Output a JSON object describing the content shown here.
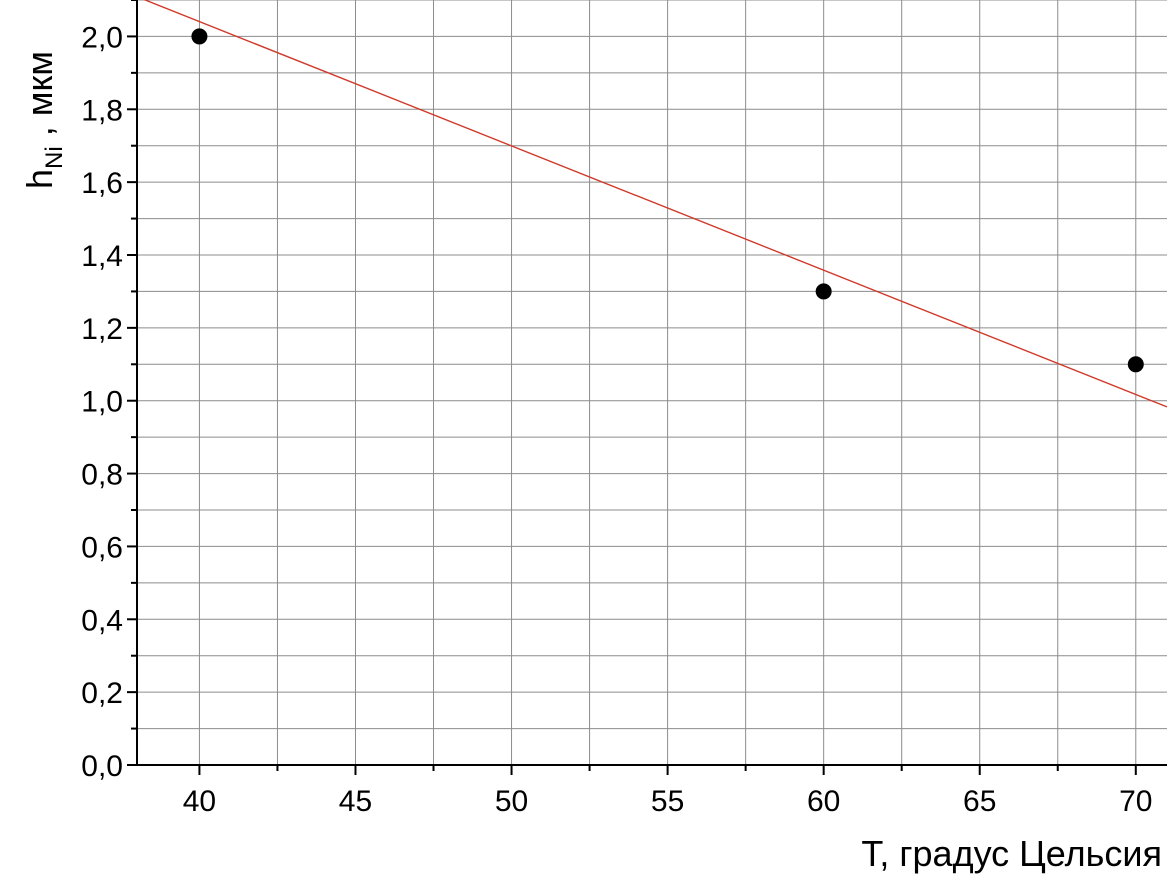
{
  "chart_data": {
    "type": "scatter",
    "title": "",
    "xlabel": "T, градус Цельсия",
    "ylabel": {
      "main": "h",
      "subscript": "Ni",
      "suffix": " , мкм"
    },
    "xlim": [
      38,
      71
    ],
    "ylim": [
      0.0,
      2.1
    ],
    "x_major_ticks": [
      40,
      45,
      50,
      55,
      60,
      65,
      70
    ],
    "x_tick_labels": [
      "40",
      "45",
      "50",
      "55",
      "60",
      "65",
      "70"
    ],
    "x_grid_step": 2.5,
    "y_major_ticks": [
      0.0,
      0.2,
      0.4,
      0.6,
      0.8,
      1.0,
      1.2,
      1.4,
      1.6,
      1.8,
      2.0
    ],
    "y_tick_labels": [
      "0,0",
      "0,2",
      "0,4",
      "0,6",
      "0,8",
      "1,0",
      "1,2",
      "1,4",
      "1,6",
      "1,8",
      "2,0"
    ],
    "y_grid_step": 0.1,
    "grid": true,
    "series": [
      {
        "x": [
          40,
          60,
          70
        ],
        "y": [
          2.0,
          1.3,
          1.1
        ],
        "color": "#000000",
        "marker": "circle"
      }
    ],
    "fit_line": {
      "x": [
        38,
        71
      ],
      "y": [
        2.109,
        0.983
      ],
      "color": "#d03a2a"
    }
  }
}
